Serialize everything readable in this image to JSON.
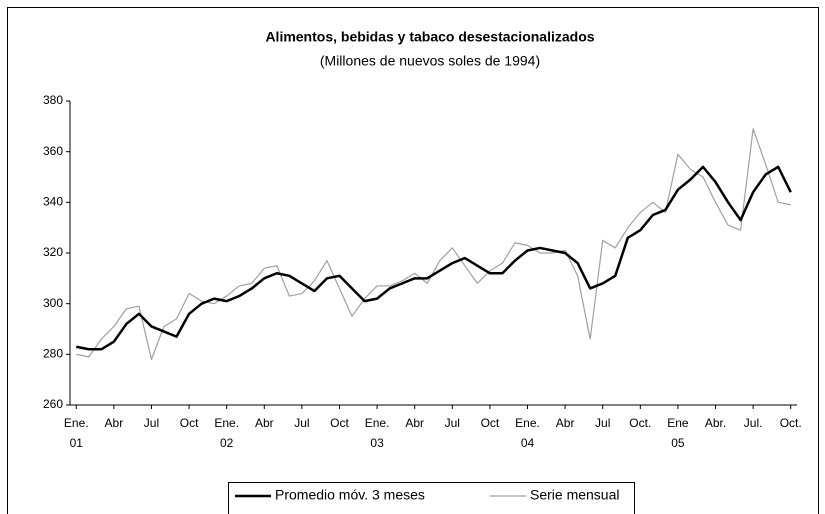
{
  "chart_data": {
    "type": "line",
    "title": "Alimentos, bebidas y tabaco desestacionalizados",
    "subtitle": "(Millones de nuevos soles de 1994)",
    "categories": [
      "Ene.",
      null,
      null,
      "Abr",
      null,
      null,
      "Jul",
      null,
      null,
      "Oct",
      null,
      null,
      "Ene.",
      null,
      null,
      "Abr",
      null,
      null,
      "Jul",
      null,
      null,
      "Oct",
      null,
      null,
      "Ene.",
      null,
      null,
      "Abr",
      null,
      null,
      "Jul",
      null,
      null,
      "Oct",
      null,
      null,
      "Ene.",
      null,
      null,
      "Abr",
      null,
      null,
      "Jul",
      null,
      null,
      "Oct.",
      null,
      null,
      "Ene",
      null,
      null,
      "Abr.",
      null,
      null,
      "Jul.",
      null,
      null,
      "Oct."
    ],
    "year_labels": [
      "01",
      null,
      null,
      null,
      null,
      null,
      null,
      null,
      null,
      null,
      null,
      null,
      "02",
      null,
      null,
      null,
      null,
      null,
      null,
      null,
      null,
      null,
      null,
      null,
      "03",
      null,
      null,
      null,
      null,
      null,
      null,
      null,
      null,
      null,
      null,
      null,
      "04",
      null,
      null,
      null,
      null,
      null,
      null,
      null,
      null,
      null,
      null,
      null,
      "05",
      null,
      null,
      null,
      null,
      null,
      null,
      null,
      null,
      null
    ],
    "series": [
      {
        "name": "Promedio móv. 3 meses",
        "color": "#000000",
        "values": [
          283,
          282,
          282,
          285,
          292,
          296,
          291,
          289,
          287,
          296,
          300,
          302,
          301,
          303,
          306,
          310,
          312,
          311,
          308,
          305,
          310,
          311,
          306,
          301,
          302,
          306,
          308,
          310,
          310,
          313,
          316,
          318,
          315,
          312,
          312,
          317,
          321,
          322,
          321,
          320,
          316,
          306,
          308,
          311,
          326,
          329,
          335,
          337,
          345,
          349,
          354,
          348,
          340,
          333,
          344,
          351,
          354,
          344
        ]
      },
      {
        "name": "Serie mensual",
        "color": "#a0a0a0",
        "values": [
          280,
          279,
          286,
          291,
          298,
          299,
          278,
          291,
          294,
          304,
          301,
          300,
          303,
          307,
          308,
          314,
          315,
          303,
          304,
          309,
          317,
          306,
          295,
          302,
          307,
          307,
          309,
          312,
          308,
          317,
          322,
          315,
          308,
          313,
          316,
          324,
          323,
          320,
          320,
          321,
          311,
          286,
          325,
          322,
          330,
          336,
          340,
          336,
          359,
          353,
          350,
          340,
          331,
          329,
          369,
          355,
          340,
          339
        ]
      }
    ],
    "ylim": [
      260,
      380
    ],
    "yticks": [
      260,
      280,
      300,
      320,
      340,
      360,
      380
    ]
  }
}
